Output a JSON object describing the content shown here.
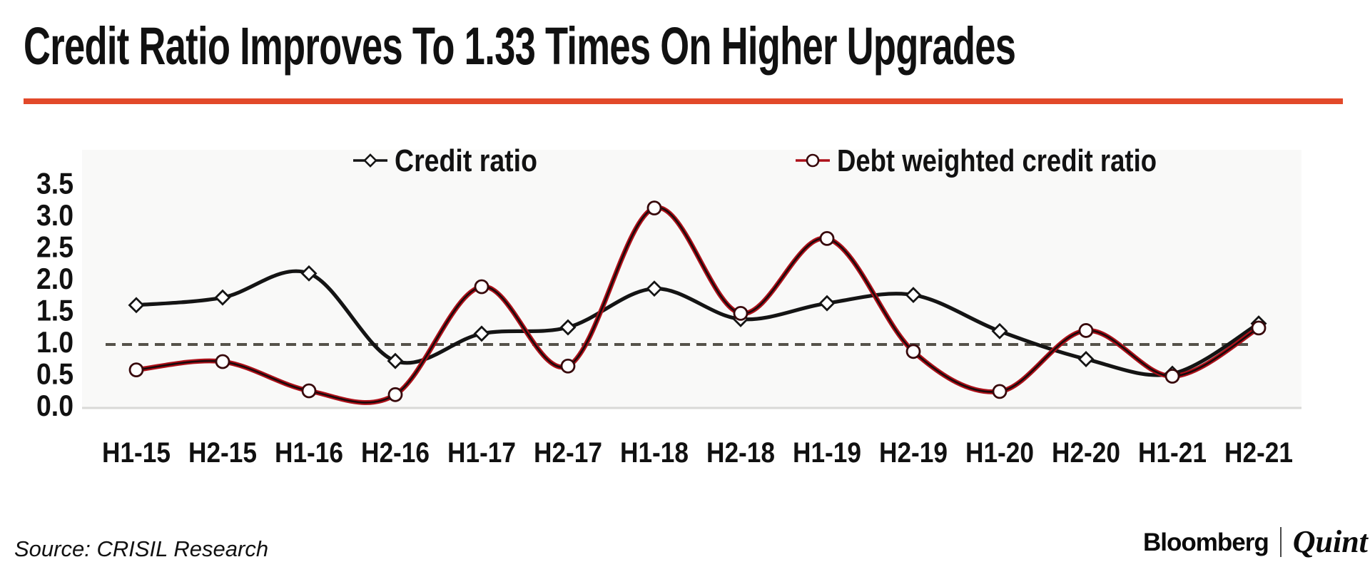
{
  "title": {
    "text": "Credit Ratio Improves To 1.33 Times On Higher Upgrades"
  },
  "colors": {
    "accent_rule": "#e2492a",
    "credit_line": "#141414",
    "debt_line_edge": "#ad1019",
    "debt_line_core": "#1a090b",
    "reference_dash": "#55524a",
    "baseline": "#d9d9d7",
    "plot_bg": "#f5f5f3",
    "text": "#111111"
  },
  "source": {
    "text": "Source: CRISIL Research"
  },
  "footer": {
    "brand_left": "Bloomberg",
    "brand_right": "Quint"
  },
  "chart_data": {
    "type": "line",
    "title": "Credit Ratio Improves To 1.33 Times On Higher Upgrades",
    "categories": [
      "H1-15",
      "H2-15",
      "H1-16",
      "H2-16",
      "H1-17",
      "H2-17",
      "H1-18",
      "H2-18",
      "H1-19",
      "H2-19",
      "H1-20",
      "H2-20",
      "H1-21",
      "H2-21"
    ],
    "series": [
      {
        "name": "Credit ratio",
        "marker": "diamond",
        "values": [
          1.62,
          1.74,
          2.12,
          0.74,
          1.17,
          1.27,
          1.88,
          1.4,
          1.65,
          1.78,
          1.21,
          0.77,
          0.54,
          1.33
        ]
      },
      {
        "name": "Debt weighted credit ratio",
        "marker": "circle",
        "values": [
          0.6,
          0.73,
          0.27,
          0.21,
          1.91,
          0.66,
          3.15,
          1.49,
          2.67,
          0.89,
          0.26,
          1.22,
          0.5,
          1.26
        ]
      }
    ],
    "ylim": [
      0,
      3.5
    ],
    "yticks": [
      3.5,
      3.0,
      2.5,
      2.0,
      1.5,
      1.0,
      0.5,
      0.0
    ],
    "reference_line": 1.0,
    "grid": false,
    "legend_position": "top",
    "xlabel": "",
    "ylabel": ""
  }
}
